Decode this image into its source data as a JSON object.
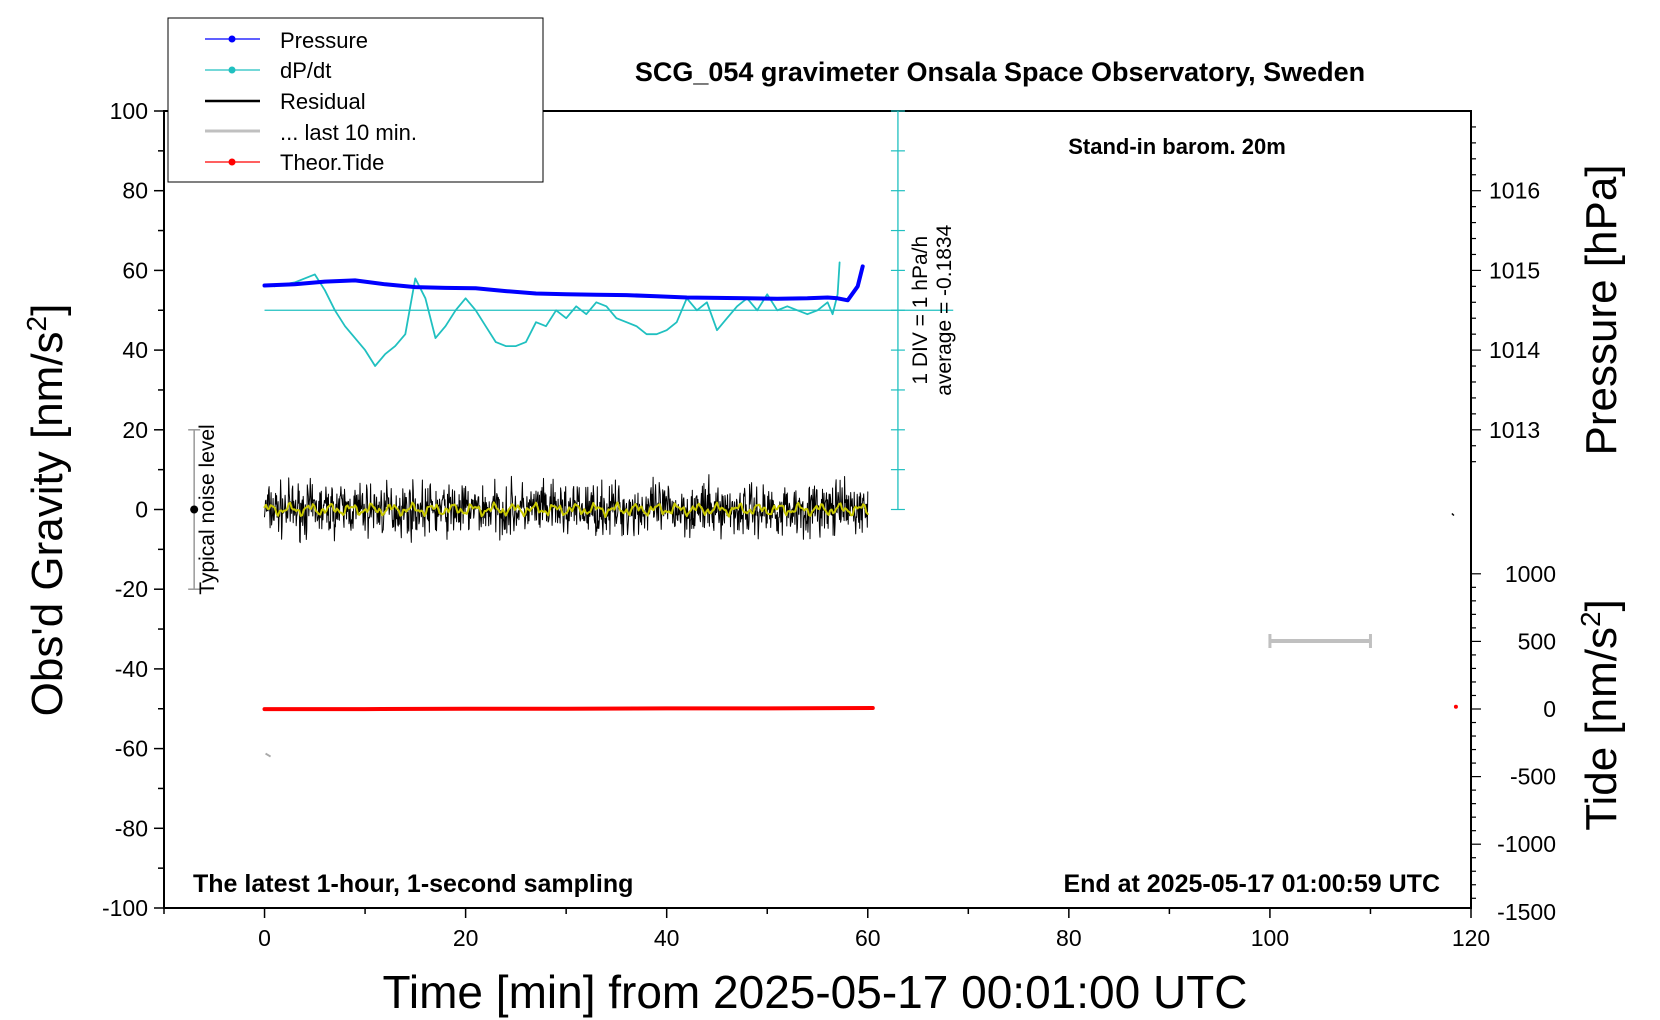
{
  "chart_data": {
    "type": "line",
    "title": "SCG_054 gravimeter Onsala Space Observatory, Sweden",
    "xlabel": "Time [min] from 2025-05-17 00:01:00 UTC",
    "ylabel_left_main": "Obs'd Gravity [nm/s",
    "ylabel_left_sup": "2",
    "ylabel_left_close": "]",
    "ylabel_right_pressure": "Pressure [hPa]",
    "ylabel_right_tide_main": "Tide [nm/s",
    "ylabel_right_tide_sup": "2",
    "ylabel_right_tide_close": "]",
    "xlim": [
      -10,
      120
    ],
    "ylim_left": [
      -100,
      100
    ],
    "pressure_axis": {
      "ticks": [
        "1013",
        "1014",
        "1015",
        "1016"
      ],
      "ticks_values": [
        1013,
        1014,
        1015,
        1016
      ],
      "units_per_left": 0.01333,
      "offset_left_at": 1013
    },
    "tide_axis": {
      "ticks": [
        "-1500",
        "-1000",
        "-500",
        "0",
        "500",
        "1000"
      ],
      "ticks_values": [
        -1500,
        -1000,
        -500,
        0,
        500,
        1000
      ],
      "range": [
        -1500,
        1500
      ]
    },
    "x_ticks": [
      "0",
      "20",
      "40",
      "60",
      "80",
      "100",
      "120"
    ],
    "x_ticks_values": [
      0,
      20,
      40,
      60,
      80,
      100,
      120
    ],
    "y_ticks": [
      "100",
      "80",
      "60",
      "40",
      "20",
      "0",
      "-20",
      "-40",
      "-60",
      "-80",
      "-100"
    ],
    "y_ticks_values": [
      100,
      80,
      60,
      40,
      20,
      0,
      -20,
      -40,
      -60,
      -80,
      -100
    ],
    "legend": {
      "placement": "top-left",
      "entries": [
        {
          "label": "Pressure",
          "color": "#0000ff"
        },
        {
          "label": "dP/dt",
          "color": "#20c0c0"
        },
        {
          "label": "Residual",
          "color": "#000000"
        },
        {
          "label": "... last 10 min.",
          "color": "#c0c0c0"
        },
        {
          "label": "Theor.Tide",
          "color": "#ff0000"
        }
      ]
    },
    "annotations": {
      "stand_in": "Stand-in barom. 20m",
      "latest": "The latest 1-hour, 1-second sampling",
      "end_at": "End at 2025-05-17 01:00:59 UTC",
      "noise_label": "Typical noise level",
      "div_label": "1 DIV = 1 hPa/h",
      "average_label": "average = -0.1834"
    },
    "colors": {
      "pressure": "#0000ff",
      "dpdt": "#20c0c0",
      "residual": "#000000",
      "residual_smooth": "#c8c800",
      "tide": "#ff0000",
      "last10": "#c0c0c0"
    },
    "series": [
      {
        "name": "Pressure",
        "x": [
          0,
          3,
          6,
          9,
          12,
          15,
          18,
          21,
          24,
          27,
          30,
          33,
          36,
          39,
          42,
          45,
          48,
          51,
          54,
          56,
          57,
          58,
          59,
          59.5
        ],
        "y": [
          56.2,
          56.5,
          57.2,
          57.5,
          56.5,
          55.8,
          55.6,
          55.5,
          54.8,
          54.2,
          54.0,
          53.9,
          53.8,
          53.5,
          53.2,
          53.1,
          53.0,
          52.9,
          53.0,
          53.2,
          53.0,
          52.5,
          56.0,
          61.0
        ]
      },
      {
        "name": "dP/dt",
        "x": [
          1,
          3,
          5,
          6,
          7,
          8,
          9,
          10,
          11,
          12,
          13,
          14,
          15,
          16,
          17,
          18,
          19,
          20,
          21,
          22,
          23,
          24,
          25,
          26,
          27,
          28,
          29,
          30,
          31,
          32,
          33,
          34,
          35,
          36,
          37,
          38,
          39,
          40,
          41,
          42,
          43,
          44,
          45,
          46,
          47,
          48,
          49,
          50,
          51,
          52,
          53,
          54,
          55,
          56,
          56.5,
          57,
          57.2
        ],
        "y": [
          56,
          57,
          59,
          55,
          50,
          46,
          43,
          40,
          36,
          39,
          41,
          44,
          58,
          53,
          43,
          46,
          50,
          53,
          50,
          46,
          42,
          41,
          41,
          42,
          47,
          46,
          50,
          48,
          51,
          49,
          52,
          51,
          48,
          47,
          46,
          44,
          44,
          45,
          47,
          53,
          50,
          52,
          45,
          48,
          51,
          53,
          50,
          54,
          50,
          51,
          50,
          49,
          50,
          52,
          49,
          54,
          62
        ]
      },
      {
        "name": "Residual",
        "x_range": [
          0,
          60
        ],
        "mean": 0,
        "amplitude": 4
      },
      {
        "name": "Theor.Tide",
        "x": [
          0,
          10,
          20,
          30,
          40,
          50,
          60.5
        ],
        "y": [
          -50.1,
          -50.1,
          -50.0,
          -50.0,
          -49.9,
          -49.9,
          -49.8
        ]
      },
      {
        "name": "... last 10 min.",
        "x": [
          100,
          110
        ],
        "y": [
          -33,
          -33
        ]
      }
    ],
    "noise_bar": {
      "x": -7,
      "y_range": [
        -20,
        20
      ],
      "center": 0
    },
    "dpdt_axis": {
      "x": 63,
      "y_range": [
        0,
        100
      ],
      "baseline": 50
    },
    "small_marks": {
      "tide_dot": {
        "x": 118.5,
        "y": -49.5
      },
      "residual_mark": {
        "x": 118.2,
        "y": -1
      },
      "gray_mark": {
        "x": 0.3,
        "y": -61.5
      }
    }
  }
}
